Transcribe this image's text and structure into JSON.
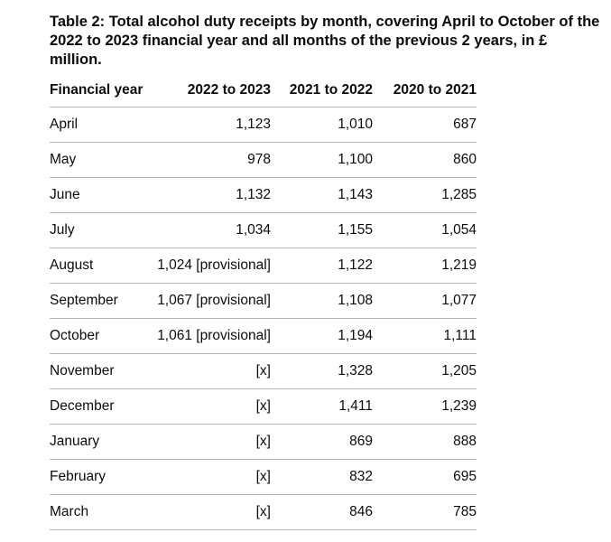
{
  "caption": "Table 2: Total alcohol duty receipts by month, covering April to October of the 2022 to 2023 financial year and all months of the previous 2 years, in £ million.",
  "table": {
    "headers": [
      "Financial year",
      "2022 to 2023",
      "2021 to 2022",
      "2020 to 2021"
    ],
    "rows": [
      [
        "April",
        "1,123",
        "1,010",
        "687"
      ],
      [
        "May",
        "978",
        "1,100",
        "860"
      ],
      [
        "June",
        "1,132",
        "1,143",
        "1,285"
      ],
      [
        "July",
        "1,034",
        "1,155",
        "1,054"
      ],
      [
        "August",
        "1,024 [provisional]",
        "1,122",
        "1,219"
      ],
      [
        "September",
        "1,067 [provisional]",
        "1,108",
        "1,077"
      ],
      [
        "October",
        "1,061 [provisional]",
        "1,194",
        "1,111"
      ],
      [
        "November",
        "[x]",
        "1,328",
        "1,205"
      ],
      [
        "December",
        "[x]",
        "1,411",
        "1,239"
      ],
      [
        "January",
        "[x]",
        "869",
        "888"
      ],
      [
        "February",
        "[x]",
        "832",
        "695"
      ],
      [
        "March",
        "[x]",
        "846",
        "785"
      ]
    ]
  }
}
